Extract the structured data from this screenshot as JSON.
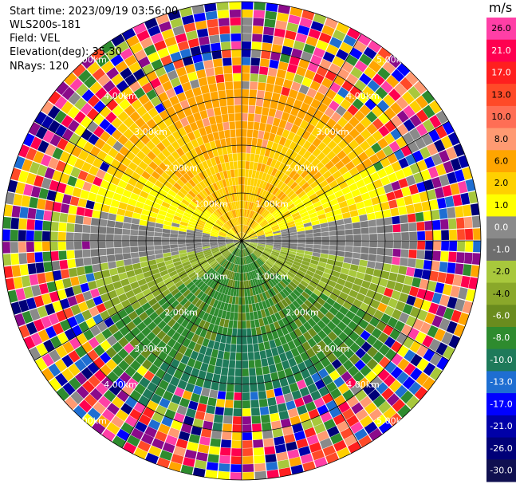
{
  "info": {
    "start_time": "Start time: 2023/09/19 03:56:00",
    "station": "WLS200s-181",
    "field": "Field: VEL",
    "elevation": "Elevation(deg): 35.30",
    "nrays": "NRays: 120"
  },
  "chart_data": {
    "type": "heatmap",
    "projection": "polar-ppi",
    "nrays": 120,
    "range_rings_km": [
      1.0,
      2.0,
      3.0,
      4.0,
      5.0
    ],
    "ring_labels": [
      "1.00km",
      "2.00km",
      "3.00km",
      "4.00km",
      "5.00km"
    ],
    "colorbar": {
      "unit": "m/s",
      "ticks": [
        "26.0",
        "21.0",
        "17.0",
        "13.0",
        "10.0",
        "8.0",
        "6.0",
        "2.0",
        "1.0",
        "0.0",
        "-1.0",
        "-2.0",
        "-4.0",
        "-6.0",
        "-8.0",
        "-10.0",
        "-13.0",
        "-17.0",
        "-21.0",
        "-26.0",
        "-30.0"
      ],
      "colors": [
        "#ff3fa6",
        "#ff0050",
        "#ff1f1f",
        "#ff4a28",
        "#ff6e55",
        "#ff9a72",
        "#ffa500",
        "#ffd000",
        "#ffff00",
        "#8a8a8a",
        "#6e6e6e",
        "#a8c83c",
        "#8aa82a",
        "#6a8c1e",
        "#2e8b2e",
        "#1e7a5a",
        "#1e6ed2",
        "#0000ff",
        "#0000a8",
        "#000078",
        "#101050",
        "#18185a"
      ]
    }
  }
}
